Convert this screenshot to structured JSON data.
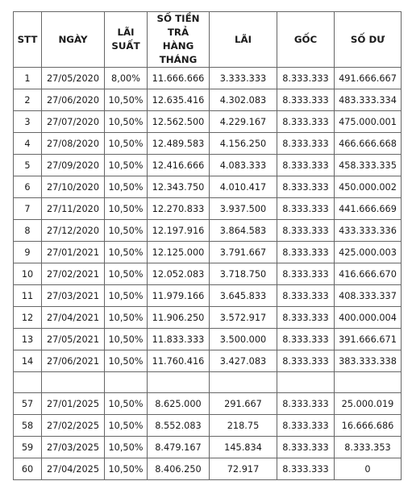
{
  "table": {
    "headers": {
      "stt": "STT",
      "ngay": "NGÀY",
      "lai_suat_1": "LÃI",
      "lai_suat_2": "SUẤT",
      "so_tien_1": "SỐ TIỀN",
      "so_tien_2": "TRẢ HÀNG",
      "so_tien_3": "THÁNG",
      "lai": "LÃI",
      "goc": "GỐC",
      "so_du": "SỐ DƯ"
    },
    "rows": [
      {
        "stt": "1",
        "ngay": "27/05/2020",
        "lai_suat": "8,00%",
        "tra": "11.666.666",
        "lai": "3.333.333",
        "goc": "8.333.333",
        "du": "491.666.667"
      },
      {
        "stt": "2",
        "ngay": "27/06/2020",
        "lai_suat": "10,50%",
        "tra": "12.635.416",
        "lai": "4.302.083",
        "goc": "8.333.333",
        "du": "483.333.334"
      },
      {
        "stt": "3",
        "ngay": "27/07/2020",
        "lai_suat": "10,50%",
        "tra": "12.562.500",
        "lai": "4.229.167",
        "goc": "8.333.333",
        "du": "475.000.001"
      },
      {
        "stt": "4",
        "ngay": "27/08/2020",
        "lai_suat": "10,50%",
        "tra": "12.489.583",
        "lai": "4.156.250",
        "goc": "8.333.333",
        "du": "466.666.668"
      },
      {
        "stt": "5",
        "ngay": "27/09/2020",
        "lai_suat": "10,50%",
        "tra": "12.416.666",
        "lai": "4.083.333",
        "goc": "8.333.333",
        "du": "458.333.335"
      },
      {
        "stt": "6",
        "ngay": "27/10/2020",
        "lai_suat": "10,50%",
        "tra": "12.343.750",
        "lai": "4.010.417",
        "goc": "8.333.333",
        "du": "450.000.002"
      },
      {
        "stt": "7",
        "ngay": "27/11/2020",
        "lai_suat": "10,50%",
        "tra": "12.270.833",
        "lai": "3.937.500",
        "goc": "8.333.333",
        "du": "441.666.669"
      },
      {
        "stt": "8",
        "ngay": "27/12/2020",
        "lai_suat": "10,50%",
        "tra": "12.197.916",
        "lai": "3.864.583",
        "goc": "8.333.333",
        "du": "433.333.336"
      },
      {
        "stt": "9",
        "ngay": "27/01/2021",
        "lai_suat": "10,50%",
        "tra": "12.125.000",
        "lai": "3.791.667",
        "goc": "8.333.333",
        "du": "425.000.003"
      },
      {
        "stt": "10",
        "ngay": "27/02/2021",
        "lai_suat": "10,50%",
        "tra": "12.052.083",
        "lai": "3.718.750",
        "goc": "8.333.333",
        "du": "416.666.670"
      },
      {
        "stt": "11",
        "ngay": "27/03/2021",
        "lai_suat": "10,50%",
        "tra": "11.979.166",
        "lai": "3.645.833",
        "goc": "8.333.333",
        "du": "408.333.337"
      },
      {
        "stt": "12",
        "ngay": "27/04/2021",
        "lai_suat": "10,50%",
        "tra": "11.906.250",
        "lai": "3.572.917",
        "goc": "8.333.333",
        "du": "400.000.004"
      },
      {
        "stt": "13",
        "ngay": "27/05/2021",
        "lai_suat": "10,50%",
        "tra": "11.833.333",
        "lai": "3.500.000",
        "goc": "8.333.333",
        "du": "391.666.671"
      },
      {
        "stt": "14",
        "ngay": "27/06/2021",
        "lai_suat": "10,50%",
        "tra": "11.760.416",
        "lai": "3.427.083",
        "goc": "8.333.333",
        "du": "383.333.338"
      },
      {
        "stt": "",
        "ngay": "",
        "lai_suat": "",
        "tra": "",
        "lai": "",
        "goc": "",
        "du": ""
      },
      {
        "stt": "57",
        "ngay": "27/01/2025",
        "lai_suat": "10,50%",
        "tra": "8.625.000",
        "lai": "291.667",
        "goc": "8.333.333",
        "du": "25.000.019"
      },
      {
        "stt": "58",
        "ngay": "27/02/2025",
        "lai_suat": "10,50%",
        "tra": "8.552.083",
        "lai": "218.75",
        "goc": "8.333.333",
        "du": "16.666.686"
      },
      {
        "stt": "59",
        "ngay": "27/03/2025",
        "lai_suat": "10,50%",
        "tra": "8.479.167",
        "lai": "145.834",
        "goc": "8.333.333",
        "du": "8.333.353"
      },
      {
        "stt": "60",
        "ngay": "27/04/2025",
        "lai_suat": "10,50%",
        "tra": "8.406.250",
        "lai": "72.917",
        "goc": "8.333.333",
        "du": "0"
      }
    ]
  }
}
